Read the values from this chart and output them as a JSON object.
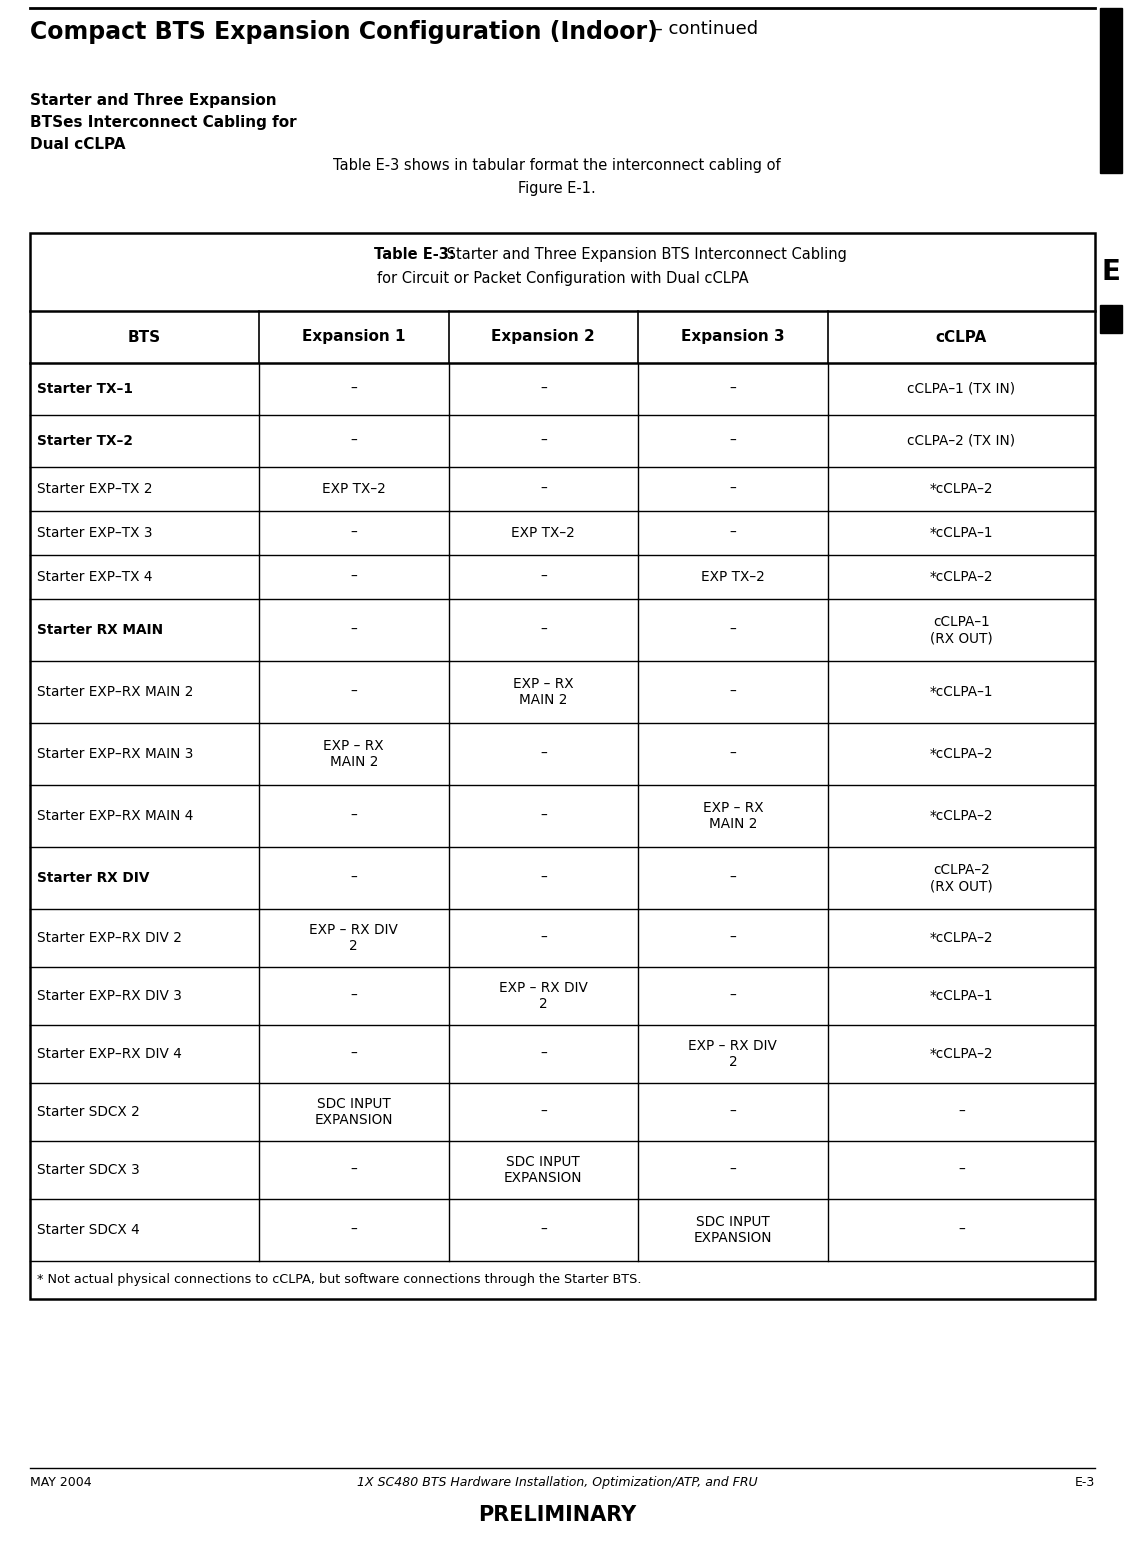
{
  "page_title_bold": "Compact BTS Expansion Configuration (Indoor)",
  "page_title_normal": " – continued",
  "side_label": "Starter and Three Expansion\nBTSes Interconnect Cabling for\nDual cCLPA",
  "intro_text": "Table E-3 shows in tabular format the interconnect cabling of\nFigure E-1.",
  "table_caption_bold": "Table E-3:",
  "table_caption_normal": " Starter and Three Expansion BTS Interconnect Cabling",
  "table_caption_line2": "for Circuit or Packet Configuration with Dual cCLPA",
  "col_headers": [
    "BTS",
    "Expansion 1",
    "Expansion 2",
    "Expansion 3",
    "cCLPA"
  ],
  "rows": [
    {
      "bts": "Starter TX–1",
      "bold": true,
      "exp1": "–",
      "exp2": "–",
      "exp3": "–",
      "cclpa": "cCLPA–1 (TX IN)"
    },
    {
      "bts": "Starter TX–2",
      "bold": true,
      "exp1": "–",
      "exp2": "–",
      "exp3": "–",
      "cclpa": "cCLPA–2 (TX IN)"
    },
    {
      "bts": "Starter EXP–TX 2",
      "bold": false,
      "exp1": "EXP TX–2",
      "exp2": "–",
      "exp3": "–",
      "cclpa": "*cCLPA–2"
    },
    {
      "bts": "Starter EXP–TX 3",
      "bold": false,
      "exp1": "–",
      "exp2": "EXP TX–2",
      "exp3": "–",
      "cclpa": "*cCLPA–1"
    },
    {
      "bts": "Starter EXP–TX 4",
      "bold": false,
      "exp1": "–",
      "exp2": "–",
      "exp3": "EXP TX–2",
      "cclpa": "*cCLPA–2"
    },
    {
      "bts": "Starter RX MAIN",
      "bold": true,
      "exp1": "–",
      "exp2": "–",
      "exp3": "–",
      "cclpa": "cCLPA–1\n(RX OUT)"
    },
    {
      "bts": "Starter EXP–RX MAIN 2",
      "bold": false,
      "exp1": "–",
      "exp2": "EXP – RX\nMAIN 2",
      "exp3": "–",
      "cclpa": "*cCLPA–1"
    },
    {
      "bts": "Starter EXP–RX MAIN 3",
      "bold": false,
      "exp1": "EXP – RX\nMAIN 2",
      "exp2": "–",
      "exp3": "–",
      "cclpa": "*cCLPA–2"
    },
    {
      "bts": "Starter EXP–RX MAIN 4",
      "bold": false,
      "exp1": "–",
      "exp2": "–",
      "exp3": "EXP – RX\nMAIN 2",
      "cclpa": "*cCLPA–2"
    },
    {
      "bts": "Starter RX DIV",
      "bold": true,
      "exp1": "–",
      "exp2": "–",
      "exp3": "–",
      "cclpa": "cCLPA–2\n(RX OUT)"
    },
    {
      "bts": "Starter EXP–RX DIV 2",
      "bold": false,
      "exp1": "EXP – RX DIV\n2",
      "exp2": "–",
      "exp3": "–",
      "cclpa": "*cCLPA–2"
    },
    {
      "bts": "Starter EXP–RX DIV 3",
      "bold": false,
      "exp1": "–",
      "exp2": "EXP – RX DIV\n2",
      "exp3": "–",
      "cclpa": "*cCLPA–1"
    },
    {
      "bts": "Starter EXP–RX DIV 4",
      "bold": false,
      "exp1": "–",
      "exp2": "–",
      "exp3": "EXP – RX DIV\n2",
      "cclpa": "*cCLPA–2"
    },
    {
      "bts": "Starter SDCX 2",
      "bold": false,
      "exp1": "SDC INPUT\nEXPANSION",
      "exp2": "–",
      "exp3": "–",
      "cclpa": "–"
    },
    {
      "bts": "Starter SDCX 3",
      "bold": false,
      "exp1": "–",
      "exp2": "SDC INPUT\nEXPANSION",
      "exp3": "–",
      "cclpa": "–"
    },
    {
      "bts": "Starter SDCX 4",
      "bold": false,
      "exp1": "–",
      "exp2": "–",
      "exp3": "SDC INPUT\nEXPANSION",
      "cclpa": "–"
    }
  ],
  "footnote": "* Not actual physical connections to cCLPA, but software connections through the Starter BTS.",
  "footer_left": "MAY 2004",
  "footer_center": "1X SC480 BTS Hardware Installation, Optimization/ATP, and FRU",
  "footer_right": "E-3",
  "footer_prelim": "PRELIMINARY",
  "tab_letter": "E"
}
